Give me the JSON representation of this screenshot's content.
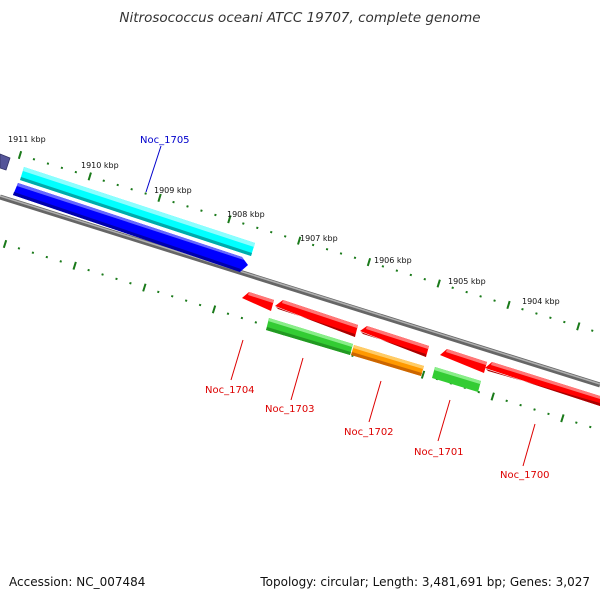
{
  "title": "Nitrosococcus oceani ATCC 19707, complete genome",
  "footer": {
    "accession": "Accession: NC_007484",
    "stats": "Topology: circular; Length: 3,481,691 bp; Genes: 3,027"
  },
  "scale_labels": [
    "1911 kbp",
    "1910 kbp",
    "1909 kbp",
    "1908 kbp",
    "1907 kbp",
    "1906 kbp",
    "1905 kbp",
    "1904 kbp"
  ],
  "colors": {
    "forward_label": "#0000cc",
    "reverse_label": "#dd0000",
    "backbone": "#808080",
    "tick": "#1a7a1a",
    "cyan_gene": "#00ffff",
    "blue_gene": "#0000ff",
    "red_gene": "#ff0000",
    "green_gene": "#33cc33",
    "orange_gene": "#ff9900",
    "purple_gene": "#555599"
  },
  "genes": [
    {
      "id": "Noc_1705",
      "strand": "forward",
      "color": "#0000ff"
    },
    {
      "id": "Noc_1704",
      "strand": "reverse",
      "color": "#ff0000"
    },
    {
      "id": "Noc_1703",
      "strand": "reverse",
      "color": "#33cc33"
    },
    {
      "id": "Noc_1702",
      "strand": "reverse",
      "color": "#ff9900"
    },
    {
      "id": "Noc_1701",
      "strand": "reverse",
      "color": "#33cc33"
    },
    {
      "id": "Noc_1700",
      "strand": "reverse",
      "color": "#ff0000"
    }
  ]
}
